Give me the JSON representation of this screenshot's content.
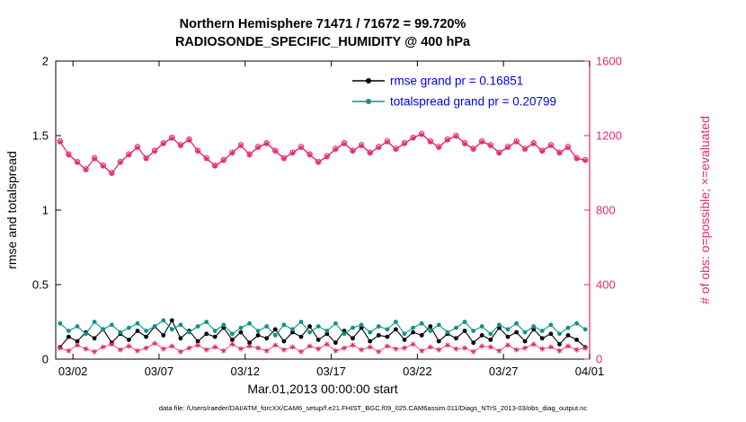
{
  "title": {
    "line1": "Northern Hemisphere 71471 / 71672 = 99.720%",
    "line2": "RADIOSONDE_SPECIFIC_HUMIDITY @ 400 hPa"
  },
  "footer": {
    "data_file": "data file: /Users/raeder/DAI/ATM_forcXX/CAM6_setup/f.e21.FHIST_BGC.f09_025.CAM6assim.011/Diags_NTrS_2013-03/obs_diag_output.nc"
  },
  "colors": {
    "obs": "#e2296f",
    "rmse": "#000000",
    "spread": "#0f9288",
    "legend_text": "#0000ee"
  },
  "chart_data": {
    "type": "line",
    "title": [
      "Northern Hemisphere 71471 / 71672 = 99.720%",
      "RADIOSONDE_SPECIFIC_HUMIDITY @ 400 hPa"
    ],
    "xlabel": "Mar.01,2013 00:00:00 start",
    "ylabel_left": "rmse and totalspread",
    "ylabel_right": "# of obs: o=possible; ×=evaluated",
    "x_range": [
      1,
      32
    ],
    "x_tick_days": [
      2,
      7,
      12,
      17,
      22,
      27,
      32
    ],
    "x_tick_labels": [
      "03/02",
      "03/07",
      "03/12",
      "03/17",
      "03/22",
      "03/27",
      "04/01"
    ],
    "ylim_left": [
      0,
      2
    ],
    "yticks_left": [
      0,
      0.5,
      1,
      1.5,
      2
    ],
    "ylim_right": [
      0,
      1600
    ],
    "yticks_right": [
      0,
      400,
      800,
      1200,
      1600
    ],
    "legend": [
      {
        "label": "rmse grand pr = 0.16851",
        "color": "#000000"
      },
      {
        "label": "totalspread grand pr = 0.20799",
        "color": "#0f9288"
      }
    ],
    "x_days": [
      1.25,
      1.75,
      2.25,
      2.75,
      3.25,
      3.75,
      4.25,
      4.75,
      5.25,
      5.75,
      6.25,
      6.75,
      7.25,
      7.75,
      8.25,
      8.75,
      9.25,
      9.75,
      10.25,
      10.75,
      11.25,
      11.75,
      12.25,
      12.75,
      13.25,
      13.75,
      14.25,
      14.75,
      15.25,
      15.75,
      16.25,
      16.75,
      17.25,
      17.75,
      18.25,
      18.75,
      19.25,
      19.75,
      20.25,
      20.75,
      21.25,
      21.75,
      22.25,
      22.75,
      23.25,
      23.75,
      24.25,
      24.75,
      25.25,
      25.75,
      26.25,
      26.75,
      27.25,
      27.75,
      28.25,
      28.75,
      29.25,
      29.75,
      30.25,
      30.75,
      31.25,
      31.75
    ],
    "series": [
      {
        "name": "rmse",
        "axis": "left",
        "color": "#000000",
        "style": "line-dots",
        "marker": "dot",
        "values": [
          0.08,
          0.15,
          0.12,
          0.18,
          0.14,
          0.2,
          0.11,
          0.17,
          0.13,
          0.19,
          0.15,
          0.22,
          0.16,
          0.26,
          0.14,
          0.19,
          0.12,
          0.17,
          0.15,
          0.21,
          0.13,
          0.18,
          0.11,
          0.16,
          0.14,
          0.2,
          0.12,
          0.18,
          0.15,
          0.22,
          0.13,
          0.17,
          0.11,
          0.19,
          0.14,
          0.21,
          0.12,
          0.16,
          0.15,
          0.2,
          0.13,
          0.18,
          0.16,
          0.22,
          0.12,
          0.17,
          0.14,
          0.19,
          0.11,
          0.16,
          0.13,
          0.21,
          0.15,
          0.18,
          0.12,
          0.2,
          0.14,
          0.17,
          0.1,
          0.16,
          0.13,
          0.08
        ]
      },
      {
        "name": "totalspread",
        "axis": "left",
        "color": "#0f9288",
        "style": "line-dots",
        "marker": "dot",
        "values": [
          0.24,
          0.19,
          0.22,
          0.17,
          0.25,
          0.2,
          0.23,
          0.18,
          0.21,
          0.24,
          0.19,
          0.22,
          0.26,
          0.2,
          0.23,
          0.18,
          0.22,
          0.25,
          0.19,
          0.23,
          0.17,
          0.21,
          0.24,
          0.19,
          0.22,
          0.16,
          0.23,
          0.2,
          0.25,
          0.18,
          0.22,
          0.19,
          0.24,
          0.17,
          0.21,
          0.23,
          0.18,
          0.22,
          0.2,
          0.25,
          0.17,
          0.21,
          0.24,
          0.19,
          0.23,
          0.18,
          0.21,
          0.25,
          0.19,
          0.22,
          0.17,
          0.23,
          0.2,
          0.24,
          0.18,
          0.22,
          0.19,
          0.23,
          0.17,
          0.21,
          0.24,
          0.2
        ]
      },
      {
        "name": "obs_possible",
        "axis": "right",
        "color": "#e2296f",
        "style": "obs-markers",
        "marker": "circle",
        "values": [
          1170,
          1100,
          1060,
          1020,
          1080,
          1040,
          1000,
          1060,
          1100,
          1140,
          1080,
          1120,
          1160,
          1190,
          1150,
          1180,
          1120,
          1080,
          1040,
          1070,
          1110,
          1150,
          1100,
          1140,
          1160,
          1120,
          1080,
          1110,
          1140,
          1100,
          1060,
          1090,
          1130,
          1160,
          1120,
          1150,
          1110,
          1140,
          1170,
          1130,
          1160,
          1190,
          1210,
          1170,
          1140,
          1180,
          1200,
          1160,
          1130,
          1170,
          1150,
          1110,
          1140,
          1170,
          1130,
          1160,
          1120,
          1150,
          1110,
          1140,
          1080,
          1070
        ]
      },
      {
        "name": "obs_evaluated",
        "axis": "right",
        "color": "#e2296f",
        "style": "obs-markers",
        "marker": "asterisk",
        "values": [
          1166,
          1096,
          1056,
          1016,
          1076,
          1036,
          996,
          1056,
          1096,
          1136,
          1076,
          1116,
          1156,
          1186,
          1146,
          1176,
          1116,
          1076,
          1036,
          1066,
          1106,
          1146,
          1096,
          1136,
          1156,
          1116,
          1076,
          1106,
          1136,
          1096,
          1056,
          1086,
          1126,
          1156,
          1116,
          1146,
          1106,
          1136,
          1166,
          1126,
          1156,
          1186,
          1206,
          1166,
          1136,
          1176,
          1196,
          1156,
          1126,
          1166,
          1146,
          1106,
          1136,
          1166,
          1126,
          1156,
          1116,
          1146,
          1106,
          1136,
          1076,
          1066
        ]
      },
      {
        "name": "obs_count_lower_band",
        "axis": "right",
        "color": "#e2296f",
        "style": "obs-markers",
        "marker": "asterisk",
        "values": [
          60,
          45,
          75,
          55,
          40,
          65,
          80,
          50,
          70,
          45,
          60,
          85,
          55,
          70,
          40,
          60,
          75,
          50,
          65,
          45,
          80,
          55,
          70,
          60,
          45,
          75,
          50,
          65,
          40,
          70,
          55,
          80,
          45,
          60,
          75,
          50,
          65,
          40,
          70,
          55,
          60,
          80,
          45,
          65,
          50,
          75,
          55,
          60,
          40,
          70,
          65,
          45,
          75,
          50,
          60,
          80,
          55,
          65,
          45,
          70,
          50,
          60
        ]
      }
    ]
  }
}
